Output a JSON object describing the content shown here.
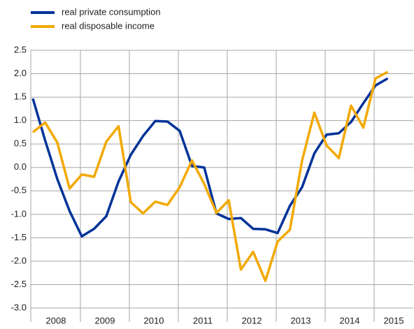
{
  "chart_data": {
    "type": "line",
    "categories": [
      "2008",
      null,
      null,
      null,
      "2009",
      null,
      null,
      null,
      "2010",
      null,
      null,
      null,
      "2011",
      null,
      null,
      null,
      "2012",
      null,
      null,
      null,
      "2013",
      null,
      null,
      null,
      "2014",
      null,
      null,
      null,
      "2015",
      null
    ],
    "series": [
      {
        "name": "real private consumption",
        "color": "#003399",
        "values": [
          1.47,
          0.58,
          -0.25,
          -0.93,
          -1.47,
          -1.31,
          -1.04,
          -0.3,
          0.27,
          0.67,
          0.99,
          0.98,
          0.78,
          0.03,
          0.0,
          -0.98,
          -1.1,
          -1.08,
          -1.31,
          -1.32,
          -1.4,
          -0.82,
          -0.42,
          0.3,
          0.7,
          0.73,
          0.97,
          1.37,
          1.75,
          1.9
        ]
      },
      {
        "name": "real disposable income",
        "color": "#f2a900",
        "values": [
          0.75,
          0.96,
          0.53,
          -0.45,
          -0.15,
          -0.2,
          0.55,
          0.88,
          -0.74,
          -0.98,
          -0.73,
          -0.8,
          -0.42,
          0.15,
          -0.35,
          -0.97,
          -0.7,
          -2.18,
          -1.8,
          -2.42,
          -1.58,
          -1.33,
          0.15,
          1.17,
          0.47,
          0.2,
          1.32,
          0.85,
          1.9,
          2.04
        ]
      }
    ],
    "ylim": [
      -3.0,
      2.5
    ],
    "yticks": [
      2.5,
      {
        "value": 2.0,
        "label": "2.0"
      },
      1.5,
      {
        "value": 1.0,
        "label": "1.0"
      },
      0.5,
      {
        "value": 0.0,
        "label": "0.0"
      },
      -0.5,
      {
        "value": -1.0,
        "label": "-1.0"
      },
      -1.5,
      {
        "value": -2.0,
        "label": "-2.0"
      },
      -2.5,
      {
        "value": -3.0,
        "label": "-3.0"
      }
    ],
    "grid": true,
    "legend": "top-left"
  }
}
